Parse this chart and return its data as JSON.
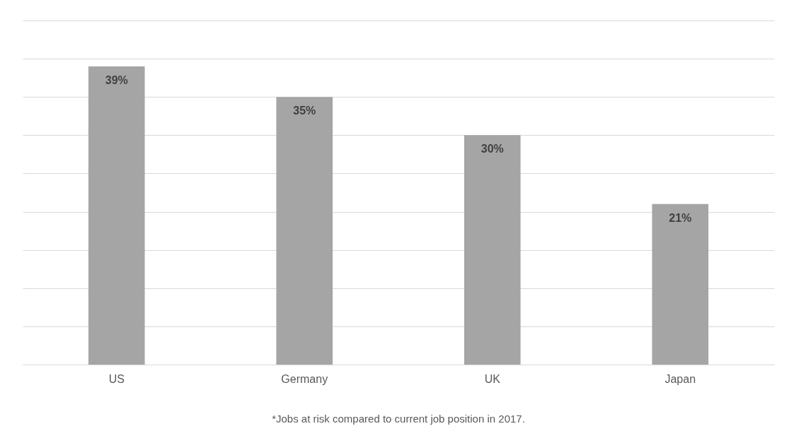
{
  "chart_data": {
    "type": "bar",
    "categories": [
      "US",
      "Germany",
      "UK",
      "Japan"
    ],
    "values": [
      39,
      35,
      30,
      21
    ],
    "value_labels": [
      "39%",
      "35%",
      "30%",
      "21%"
    ],
    "color": "#a5a5a5",
    "ylim": [
      0,
      45
    ],
    "yticks": [
      {
        "value": 0,
        "label": null
      },
      {
        "value": 5,
        "label": null
      },
      {
        "value": 10,
        "label": null
      },
      {
        "value": 15,
        "label": null
      },
      {
        "value": 20,
        "label": null
      },
      {
        "value": 25,
        "label": null
      },
      {
        "value": 30,
        "label": null
      },
      {
        "value": 35,
        "label": null
      },
      {
        "value": 40,
        "label": null
      },
      {
        "value": 45,
        "label": null
      }
    ],
    "tick_labels": "x",
    "grid": "y",
    "annotations": [
      "*Jobs at risk compared to current job position in 2017."
    ]
  }
}
